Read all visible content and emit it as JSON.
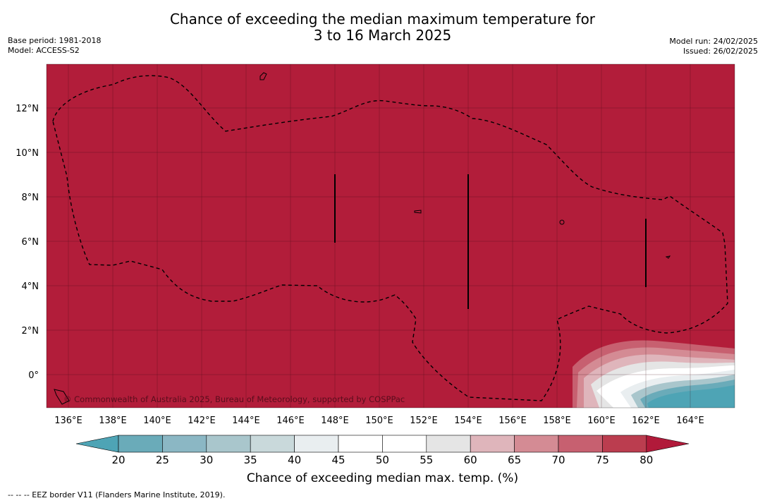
{
  "header": {
    "title_line1": "Chance of exceeding the median maximum temperature for",
    "title_line2": "3 to 16 March 2025",
    "base_period": "Base period: 1981-2018",
    "model": "Model: ACCESS-S2",
    "model_run": "Model run: 24/02/2025",
    "issued": "Issued: 26/02/2025"
  },
  "map": {
    "copyright": "© Commonwealth of Australia 2025, Bureau of Meteorology, supported by COSPPac",
    "lat_labels": [
      "12°N",
      "10°N",
      "8°N",
      "6°N",
      "4°N",
      "2°N",
      "0°"
    ],
    "lon_labels": [
      "136°E",
      "138°E",
      "140°E",
      "142°E",
      "144°E",
      "146°E",
      "148°E",
      "150°E",
      "152°E",
      "154°E",
      "156°E",
      "158°E",
      "160°E",
      "162°E",
      "164°E"
    ],
    "background_color": "#b21d3a"
  },
  "colorbar": {
    "ticks": [
      "20",
      "25",
      "30",
      "35",
      "40",
      "45",
      "50",
      "55",
      "60",
      "65",
      "70",
      "75",
      "80"
    ],
    "colors": [
      "#6aabb9",
      "#8bb7c4",
      "#a9c6cc",
      "#c9d9db",
      "#e9eef0",
      "#ffffff",
      "#ffffff",
      "#e5e5e5",
      "#dfb5bb",
      "#d48b94",
      "#c76070",
      "#bb3d4f"
    ],
    "under_color": "#4ea4b5",
    "over_color": "#b11a3a",
    "title": "Chance of exceeding median max. temp. (%)"
  },
  "footer": {
    "legend": "--  --  -- EEZ border V11 (Flanders Marine Institute, 2019)."
  }
}
